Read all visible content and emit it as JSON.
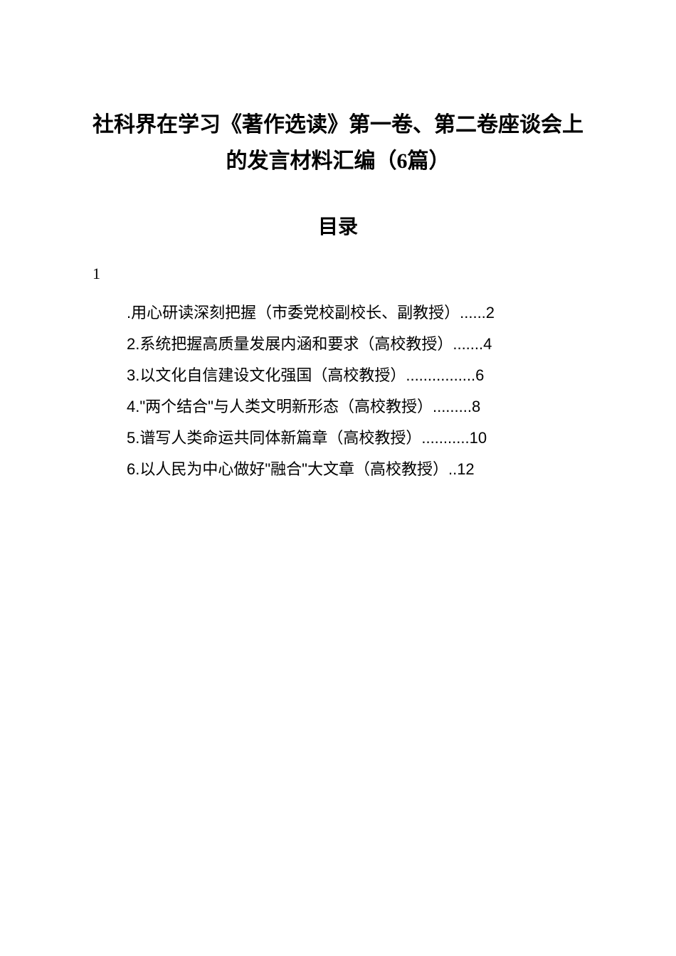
{
  "document": {
    "title": "社科界在学习《著作选读》第一卷、第二卷座谈会上的发言材料汇编（6篇）",
    "toc_heading": "目录",
    "number_one": "1",
    "toc_items": [
      {
        "text": ".用心研读深刻把握（市委党校副校长、副教授）......2"
      },
      {
        "text": "2.系统把握高质量发展内涵和要求（高校教授）.......4"
      },
      {
        "text": "3.以文化自信建设文化强国（高校教授）................6"
      },
      {
        "text": "4.\"两个结合\"与人类文明新形态（高校教授）.........8"
      },
      {
        "text": "5.谱写人类命运共同体新篇章（高校教授）...........10"
      },
      {
        "text": "6.以人民为中心做好\"融合\"大文章（高校教授）..12"
      }
    ]
  }
}
